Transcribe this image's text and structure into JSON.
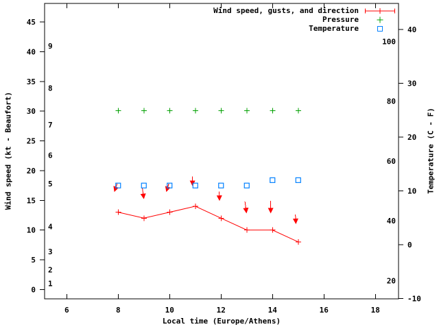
{
  "chart_data": {
    "type": "line",
    "title": "",
    "xlabel": "Local time (Europe/Athens)",
    "ylabel_left": "Wind speed (kt - Beaufort)",
    "ylabel_right": "Temperature (C - F)",
    "x_range": [
      5.14,
      18.9
    ],
    "x_ticks": [
      6,
      8,
      10,
      12,
      14,
      16,
      18
    ],
    "left_axis": {
      "unit": "kt",
      "ticks": [
        0,
        5,
        10,
        15,
        20,
        25,
        30,
        35,
        40,
        45
      ],
      "range": [
        -1.58,
        48.14
      ]
    },
    "beaufort_scale": [
      {
        "label": "1",
        "kt": 1.0
      },
      {
        "label": "2",
        "kt": 3.3
      },
      {
        "label": "3",
        "kt": 6.4
      },
      {
        "label": "4",
        "kt": 10.6
      },
      {
        "label": "5",
        "kt": 17.8
      },
      {
        "label": "6",
        "kt": 22.6
      },
      {
        "label": "7",
        "kt": 27.7
      },
      {
        "label": "8",
        "kt": 33.9
      },
      {
        "label": "9",
        "kt": 41.0
      }
    ],
    "right_axis": {
      "unit": "C",
      "ticks": [
        -10,
        0,
        10,
        20,
        30,
        40
      ],
      "range": [
        -10.06,
        44.85
      ]
    },
    "fahrenheit_labels": [
      20,
      40,
      60,
      80,
      100
    ],
    "hours": [
      8,
      9,
      10,
      11,
      12,
      13,
      14,
      15
    ],
    "series": [
      {
        "name": "wind_speed",
        "legend": "Wind speed, gusts, and direction",
        "color": "#ff0000",
        "marker": "plus-line",
        "values_kt": [
          13,
          12,
          13,
          14,
          12,
          10,
          10,
          8
        ]
      },
      {
        "name": "pressure",
        "legend": "Pressure",
        "color": "#00a000",
        "marker": "plus",
        "display_level_kt": 30.1
      },
      {
        "name": "temperature",
        "legend": "Temperature",
        "color": "#0080ff",
        "marker": "open-square",
        "values_c": [
          11,
          11,
          11,
          11,
          11,
          11,
          12,
          12
        ]
      }
    ],
    "gust_arrows": [
      {
        "tail": [
          7.96,
          17.8
        ],
        "head": [
          7.85,
          16.4
        ]
      },
      {
        "tail": [
          8.94,
          17.1
        ],
        "head": [
          9.0,
          15.2
        ]
      },
      {
        "tail": [
          9.97,
          17.8
        ],
        "head": [
          9.87,
          16.4
        ]
      },
      {
        "tail": [
          10.89,
          19.0
        ],
        "head": [
          10.89,
          17.4
        ]
      },
      {
        "tail": [
          11.93,
          16.5
        ],
        "head": [
          11.94,
          14.9
        ]
      },
      {
        "tail": [
          12.93,
          14.8
        ],
        "head": [
          12.99,
          12.8
        ]
      },
      {
        "tail": [
          13.93,
          14.9
        ],
        "head": [
          13.93,
          12.8
        ]
      },
      {
        "tail": [
          14.89,
          12.6
        ],
        "head": [
          14.91,
          11.0
        ]
      }
    ],
    "legend": {
      "position": "top-right",
      "entries": [
        {
          "label": "Wind speed, gusts, and direction",
          "color": "#ff0000",
          "symbol": "line-plus-caps"
        },
        {
          "label": "Pressure",
          "color": "#00a000",
          "symbol": "plus"
        },
        {
          "label": "Temperature",
          "color": "#0080ff",
          "symbol": "open-square"
        }
      ]
    },
    "colors": {
      "wind": "#ff0000",
      "pressure": "#00a000",
      "temperature": "#0080ff",
      "axis": "#000000",
      "background": "#ffffff"
    }
  }
}
